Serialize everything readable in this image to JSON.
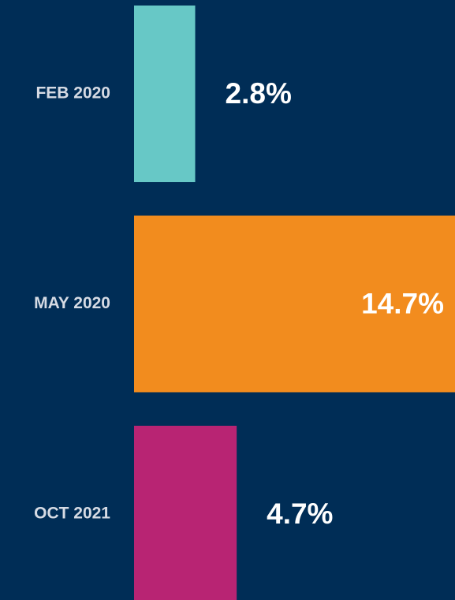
{
  "chart_data": {
    "type": "hbar",
    "categories": [
      "FEB 2020",
      "MAY 2020",
      "OCT 2021"
    ],
    "values": [
      2.8,
      14.7,
      4.7
    ],
    "value_labels": [
      "2.8%",
      "14.7%",
      "4.7%"
    ],
    "colors": [
      "#67c8c6",
      "#f28c1e",
      "#b82473"
    ]
  }
}
